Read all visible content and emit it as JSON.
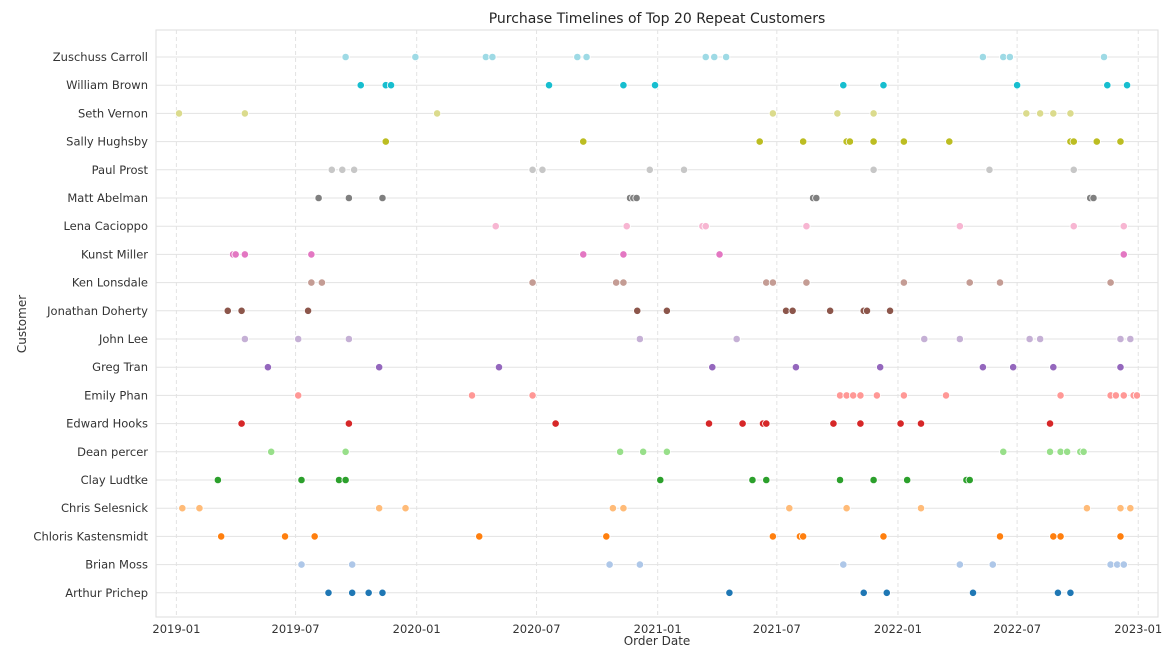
{
  "chart_data": {
    "type": "scatter",
    "title": "Purchase Timelines of Top 20 Repeat Customers",
    "xlabel": "Order Date",
    "ylabel": "Customer",
    "x_ticks": [
      "2019-01",
      "2019-07",
      "2020-01",
      "2020-07",
      "2021-01",
      "2021-07",
      "2022-01",
      "2022-07",
      "2023-01"
    ],
    "xlim": [
      "2018-12-01",
      "2023-01-31"
    ],
    "grid": true,
    "grid_style": "horizontal solid, vertical dashed",
    "categories": [
      "Zuschuss Carroll",
      "William Brown",
      "Seth Vernon",
      "Sally Hughsby",
      "Paul Prost",
      "Matt Abelman",
      "Lena Cacioppo",
      "Kunst Miller",
      "Ken Lonsdale",
      "Jonathan Doherty",
      "John Lee",
      "Greg Tran",
      "Emily Phan",
      "Edward Hooks",
      "Dean percer",
      "Clay Ludtke",
      "Chris Selesnick",
      "Chloris Kastensmidt",
      "Brian Moss",
      "Arthur Prichep"
    ],
    "series": [
      {
        "name": "Zuschuss Carroll",
        "color": "#9edae5",
        "x": [
          "2019-09-15",
          "2019-12-30",
          "2020-04-15",
          "2020-04-25",
          "2020-09-01",
          "2020-09-15",
          "2021-03-15",
          "2021-03-28",
          "2021-04-15",
          "2022-05-10",
          "2022-06-10",
          "2022-06-20",
          "2022-11-10"
        ]
      },
      {
        "name": "William Brown",
        "color": "#17becf",
        "x": [
          "2019-10-08",
          "2019-11-15",
          "2019-11-23",
          "2020-07-20",
          "2020-11-10",
          "2020-12-28",
          "2021-10-10",
          "2021-12-10",
          "2022-07-01",
          "2022-11-15",
          "2022-12-15"
        ]
      },
      {
        "name": "Seth Vernon",
        "color": "#dbdb8d",
        "x": [
          "2019-01-05",
          "2019-04-15",
          "2020-02-01",
          "2021-06-25",
          "2021-10-01",
          "2021-11-25",
          "2022-07-15",
          "2022-08-05",
          "2022-08-25",
          "2022-09-20"
        ]
      },
      {
        "name": "Sally Hughsby",
        "color": "#bcbd22",
        "x": [
          "2019-11-15",
          "2020-09-10",
          "2021-06-05",
          "2021-08-10",
          "2021-10-15",
          "2021-10-20",
          "2021-11-25",
          "2022-01-10",
          "2022-03-20",
          "2022-09-20",
          "2022-09-25",
          "2022-10-30",
          "2022-12-05"
        ]
      },
      {
        "name": "Paul Prost",
        "color": "#c7c7c7",
        "x": [
          "2019-08-25",
          "2019-09-10",
          "2019-09-28",
          "2020-06-25",
          "2020-07-10",
          "2020-12-20",
          "2021-02-10",
          "2021-11-25",
          "2022-05-20",
          "2022-09-25"
        ]
      },
      {
        "name": "Matt Abelman",
        "color": "#7f7f7f",
        "x": [
          "2019-08-05",
          "2019-09-20",
          "2019-11-10",
          "2020-11-20",
          "2020-11-25",
          "2020-11-30",
          "2021-08-25",
          "2021-08-30",
          "2022-10-20",
          "2022-10-25"
        ]
      },
      {
        "name": "Lena Cacioppo",
        "color": "#f7b6d2",
        "x": [
          "2020-04-30",
          "2020-11-15",
          "2021-03-10",
          "2021-03-15",
          "2021-08-15",
          "2022-04-05",
          "2022-09-25",
          "2022-12-10"
        ]
      },
      {
        "name": "Kunst Miller",
        "color": "#e377c2",
        "x": [
          "2019-03-28",
          "2019-04-01",
          "2019-04-15",
          "2019-07-25",
          "2020-09-10",
          "2020-11-10",
          "2021-04-05",
          "2022-12-10"
        ]
      },
      {
        "name": "Ken Lonsdale",
        "color": "#c49c94",
        "x": [
          "2019-07-25",
          "2019-08-10",
          "2020-06-25",
          "2020-10-30",
          "2020-11-10",
          "2021-06-15",
          "2021-06-25",
          "2021-08-15",
          "2022-01-10",
          "2022-04-20",
          "2022-06-05",
          "2022-11-20"
        ]
      },
      {
        "name": "Jonathan Doherty",
        "color": "#8c564b",
        "x": [
          "2019-03-20",
          "2019-04-10",
          "2019-07-20",
          "2020-12-01",
          "2021-01-15",
          "2021-07-15",
          "2021-07-25",
          "2021-09-20",
          "2021-11-10",
          "2021-11-15",
          "2021-12-20"
        ]
      },
      {
        "name": "John Lee",
        "color": "#c5b0d5",
        "x": [
          "2019-04-15",
          "2019-07-05",
          "2019-09-20",
          "2020-12-05",
          "2021-05-01",
          "2022-02-10",
          "2022-04-05",
          "2022-07-20",
          "2022-08-05",
          "2022-12-05",
          "2022-12-20"
        ]
      },
      {
        "name": "Greg Tran",
        "color": "#9467bd",
        "x": [
          "2019-05-20",
          "2019-11-05",
          "2020-05-05",
          "2021-03-25",
          "2021-07-30",
          "2021-12-05",
          "2022-05-10",
          "2022-06-25",
          "2022-08-25",
          "2022-12-05"
        ]
      },
      {
        "name": "Emily Phan",
        "color": "#ff9896",
        "x": [
          "2019-07-05",
          "2020-03-25",
          "2020-06-25",
          "2021-10-05",
          "2021-10-15",
          "2021-10-25",
          "2021-11-05",
          "2021-11-30",
          "2022-01-10",
          "2022-03-15",
          "2022-09-05",
          "2022-11-20",
          "2022-11-28",
          "2022-12-10",
          "2022-12-25",
          "2022-12-30"
        ]
      },
      {
        "name": "Edward Hooks",
        "color": "#d62728",
        "x": [
          "2019-04-10",
          "2019-09-20",
          "2020-07-30",
          "2021-03-20",
          "2021-05-10",
          "2021-06-10",
          "2021-06-15",
          "2021-09-25",
          "2021-11-05",
          "2022-01-05",
          "2022-02-05",
          "2022-08-20"
        ]
      },
      {
        "name": "Dean percer",
        "color": "#98df8a",
        "x": [
          "2019-05-25",
          "2019-09-15",
          "2020-11-05",
          "2020-12-10",
          "2021-01-15",
          "2022-06-10",
          "2022-08-20",
          "2022-09-05",
          "2022-09-15",
          "2022-10-05",
          "2022-10-10"
        ]
      },
      {
        "name": "Clay Ludtke",
        "color": "#2ca02c",
        "x": [
          "2019-03-05",
          "2019-07-10",
          "2019-09-05",
          "2019-09-15",
          "2021-01-05",
          "2021-05-25",
          "2021-06-15",
          "2021-10-05",
          "2021-11-25",
          "2022-01-15",
          "2022-04-15",
          "2022-04-20"
        ]
      },
      {
        "name": "Chris Selesnick",
        "color": "#ffbb78",
        "x": [
          "2019-01-10",
          "2019-02-05",
          "2019-11-05",
          "2019-12-15",
          "2020-10-25",
          "2020-11-10",
          "2021-07-20",
          "2021-10-15",
          "2022-02-05",
          "2022-10-15",
          "2022-12-05",
          "2022-12-20"
        ]
      },
      {
        "name": "Chloris Kastensmidt",
        "color": "#ff7f0e",
        "x": [
          "2019-03-10",
          "2019-06-15",
          "2019-07-30",
          "2020-04-05",
          "2020-10-15",
          "2021-06-25",
          "2021-08-05",
          "2021-08-10",
          "2021-12-10",
          "2022-06-05",
          "2022-08-25",
          "2022-09-05",
          "2022-12-05"
        ]
      },
      {
        "name": "Brian Moss",
        "color": "#aec7e8",
        "x": [
          "2019-07-10",
          "2019-09-25",
          "2020-10-20",
          "2020-12-05",
          "2021-10-10",
          "2022-04-05",
          "2022-05-25",
          "2022-11-20",
          "2022-11-30",
          "2022-12-10"
        ]
      },
      {
        "name": "Arthur Prichep",
        "color": "#1f77b4",
        "x": [
          "2019-08-20",
          "2019-09-25",
          "2019-10-20",
          "2019-11-10",
          "2021-04-20",
          "2021-11-10",
          "2021-12-15",
          "2022-04-25",
          "2022-09-01",
          "2022-09-20"
        ]
      }
    ]
  }
}
